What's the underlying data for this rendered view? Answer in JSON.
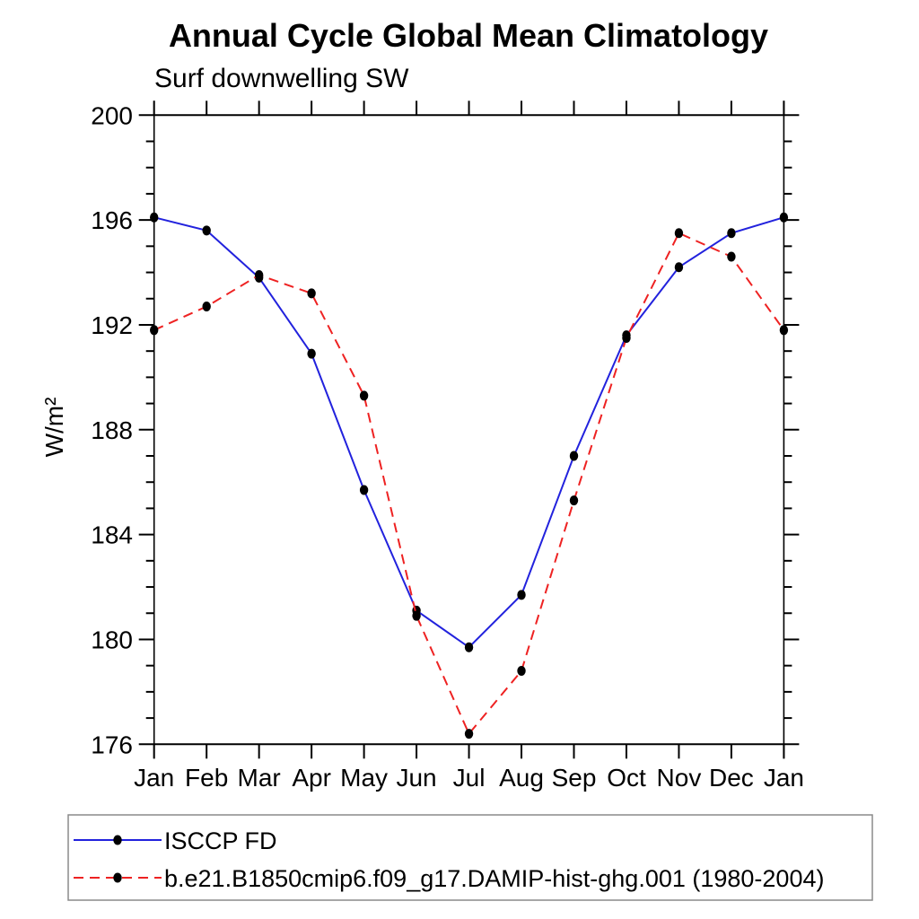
{
  "chart_data": {
    "type": "line",
    "title": "Annual Cycle Global Mean Climatology",
    "subtitle": "Surf downwelling SW",
    "ylabel": "W/m²",
    "xlabel": "",
    "categories": [
      "Jan",
      "Feb",
      "Mar",
      "Apr",
      "May",
      "Jun",
      "Jul",
      "Aug",
      "Sep",
      "Oct",
      "Nov",
      "Dec",
      "Jan"
    ],
    "ylim": [
      176,
      200
    ],
    "ytick_major_interval": 4,
    "ytick_minor_interval": 1,
    "ytick_labels": [
      "176",
      "180",
      "184",
      "188",
      "192",
      "196",
      "200"
    ],
    "grid": "off",
    "legend_position": "bottom-left-box",
    "axis_color": "#000000",
    "marker_color": "#000000",
    "series": [
      {
        "name": "ISCCP FD",
        "color": "#2222dd",
        "style": "solid",
        "marker": "filled-circle",
        "values": [
          196.1,
          195.6,
          193.8,
          190.9,
          185.7,
          181.1,
          179.7,
          181.7,
          187.0,
          191.6,
          194.2,
          195.5,
          196.1
        ]
      },
      {
        "name": "b.e21.B1850cmip6.f09_g17.DAMIP-hist-ghg.001 (1980-2004)",
        "color": "#ee2222",
        "style": "dashed",
        "marker": "filled-circle",
        "values": [
          191.8,
          192.7,
          193.9,
          193.2,
          189.3,
          180.9,
          176.4,
          178.8,
          185.3,
          191.5,
          195.5,
          194.6,
          191.8
        ]
      }
    ]
  }
}
